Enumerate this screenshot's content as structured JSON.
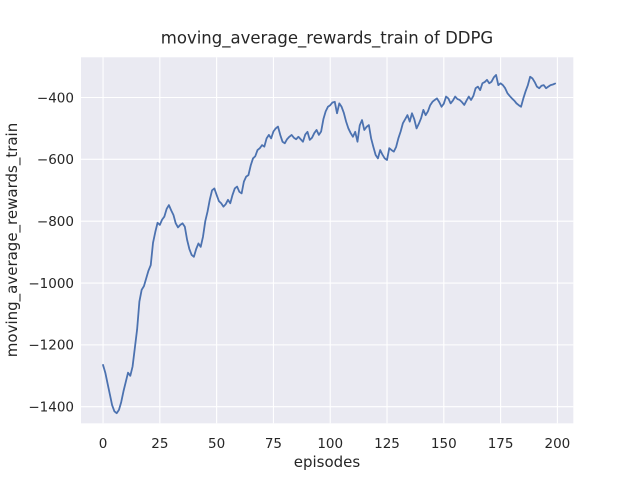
{
  "figure": {
    "title": "moving_average_rewards_train of DDPG",
    "xlabel": "episodes",
    "ylabel": "moving_average_rewards_train"
  },
  "chart_data": {
    "type": "line",
    "title": "moving_average_rewards_train of DDPG",
    "xlabel": "episodes",
    "ylabel": "moving_average_rewards_train",
    "grid": true,
    "legend": "none",
    "style": "seaborn-darkgrid",
    "plot_bg_color": "#eaeaf2",
    "grid_color": "#ffffff",
    "text_color": "#262626",
    "x_ticks": [
      0,
      25,
      50,
      75,
      100,
      125,
      150,
      175,
      200
    ],
    "y_ticks": [
      -400,
      -600,
      -800,
      -1000,
      -1200,
      -1400
    ],
    "xlim": [
      -9.7,
      207.0
    ],
    "ylim": [
      -1453.6,
      -270.0
    ],
    "series": [
      {
        "name": "moving_average_rewards_train",
        "color": "#4c72b0",
        "line_width": 1.8,
        "x_start": 0,
        "x_step": 1,
        "values": [
          -1265,
          -1290,
          -1325,
          -1360,
          -1395,
          -1415,
          -1421,
          -1410,
          -1385,
          -1350,
          -1320,
          -1290,
          -1300,
          -1270,
          -1210,
          -1150,
          -1060,
          -1022,
          -1010,
          -985,
          -960,
          -942,
          -870,
          -835,
          -805,
          -812,
          -795,
          -785,
          -760,
          -748,
          -765,
          -780,
          -807,
          -820,
          -812,
          -807,
          -818,
          -860,
          -890,
          -909,
          -915,
          -890,
          -872,
          -883,
          -850,
          -800,
          -769,
          -730,
          -700,
          -694,
          -715,
          -735,
          -742,
          -753,
          -745,
          -731,
          -742,
          -715,
          -694,
          -688,
          -705,
          -710,
          -672,
          -656,
          -651,
          -620,
          -597,
          -590,
          -570,
          -564,
          -554,
          -559,
          -532,
          -521,
          -532,
          -510,
          -500,
          -494,
          -521,
          -543,
          -548,
          -535,
          -527,
          -521,
          -530,
          -535,
          -527,
          -535,
          -543,
          -520,
          -511,
          -537,
          -530,
          -515,
          -505,
          -521,
          -510,
          -470,
          -445,
          -430,
          -425,
          -416,
          -414,
          -451,
          -419,
          -430,
          -450,
          -478,
          -500,
          -515,
          -527,
          -511,
          -543,
          -490,
          -473,
          -505,
          -495,
          -489,
          -532,
          -560,
          -586,
          -597,
          -570,
          -585,
          -597,
          -602,
          -564,
          -570,
          -575,
          -560,
          -532,
          -510,
          -483,
          -470,
          -457,
          -478,
          -451,
          -470,
          -500,
          -485,
          -467,
          -440,
          -457,
          -445,
          -425,
          -414,
          -408,
          -403,
          -415,
          -430,
          -420,
          -397,
          -403,
          -419,
          -410,
          -397,
          -405,
          -408,
          -415,
          -424,
          -410,
          -397,
          -408,
          -395,
          -370,
          -365,
          -376,
          -354,
          -350,
          -343,
          -354,
          -349,
          -335,
          -327,
          -360,
          -354,
          -360,
          -370,
          -386,
          -395,
          -403,
          -410,
          -419,
          -425,
          -430,
          -403,
          -380,
          -360,
          -333,
          -338,
          -350,
          -365,
          -370,
          -362,
          -360,
          -370,
          -365,
          -360,
          -358,
          -355
        ]
      }
    ]
  }
}
